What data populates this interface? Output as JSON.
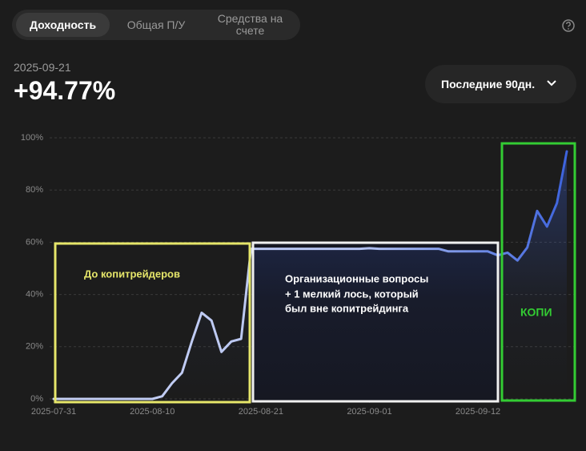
{
  "tabs": [
    "Доходность",
    "Общая П/У",
    "Средства на счете"
  ],
  "date": "2025-09-21",
  "return": "+94.77%",
  "period": "Последние 90дн.",
  "chart_data": {
    "type": "line",
    "x": [
      "2025-07-31",
      "2025-08-01",
      "2025-08-02",
      "2025-08-03",
      "2025-08-04",
      "2025-08-05",
      "2025-08-06",
      "2025-08-07",
      "2025-08-08",
      "2025-08-09",
      "2025-08-10",
      "2025-08-11",
      "2025-08-12",
      "2025-08-13",
      "2025-08-14",
      "2025-08-15",
      "2025-08-16",
      "2025-08-17",
      "2025-08-18",
      "2025-08-19",
      "2025-08-20",
      "2025-08-21",
      "2025-08-22",
      "2025-08-23",
      "2025-08-24",
      "2025-08-25",
      "2025-08-26",
      "2025-08-27",
      "2025-08-28",
      "2025-08-29",
      "2025-08-30",
      "2025-08-31",
      "2025-09-01",
      "2025-09-02",
      "2025-09-03",
      "2025-09-04",
      "2025-09-05",
      "2025-09-06",
      "2025-09-07",
      "2025-09-08",
      "2025-09-09",
      "2025-09-10",
      "2025-09-11",
      "2025-09-12",
      "2025-09-13",
      "2025-09-14",
      "2025-09-15",
      "2025-09-16",
      "2025-09-17",
      "2025-09-18",
      "2025-09-19",
      "2025-09-20",
      "2025-09-21"
    ],
    "series": [
      {
        "color": "#3d63dd",
        "values": [
          0,
          0,
          0,
          0,
          0,
          0,
          0,
          0,
          0,
          0,
          0,
          1,
          6,
          10,
          22,
          33,
          30,
          18,
          22,
          23,
          57.5,
          57.5,
          57.5,
          57.5,
          57.5,
          57.5,
          57.5,
          57.5,
          57.5,
          57.5,
          57.5,
          57.5,
          57.7,
          57.5,
          57.5,
          57.5,
          57.5,
          57.5,
          57.5,
          57.5,
          56.5,
          56.5,
          56.5,
          56.5,
          56.5,
          55,
          56,
          53,
          58,
          72,
          66,
          75,
          94.77
        ]
      }
    ],
    "ylim": [
      0,
      100
    ],
    "yticks": [
      {
        "value": 0,
        "label": "0%"
      },
      {
        "value": 20,
        "label": "20%"
      },
      {
        "value": 40,
        "label": "40%"
      },
      {
        "value": 60,
        "label": "60%"
      },
      {
        "value": 80,
        "label": "80%"
      },
      {
        "value": 100,
        "label": "100%"
      }
    ],
    "xticks": [
      "2025-07-31",
      "2025-08-10",
      "2025-08-21",
      "2025-09-01",
      "2025-09-12"
    ],
    "grid": true,
    "annotations": [
      {
        "text": "До копитрейдеров"
      },
      {
        "lines": [
          "Организационные вопросы",
          "+ 1 мелкий лось, который",
          "был вне копитрейдинга"
        ]
      },
      {
        "text": "КОПИ"
      }
    ]
  }
}
